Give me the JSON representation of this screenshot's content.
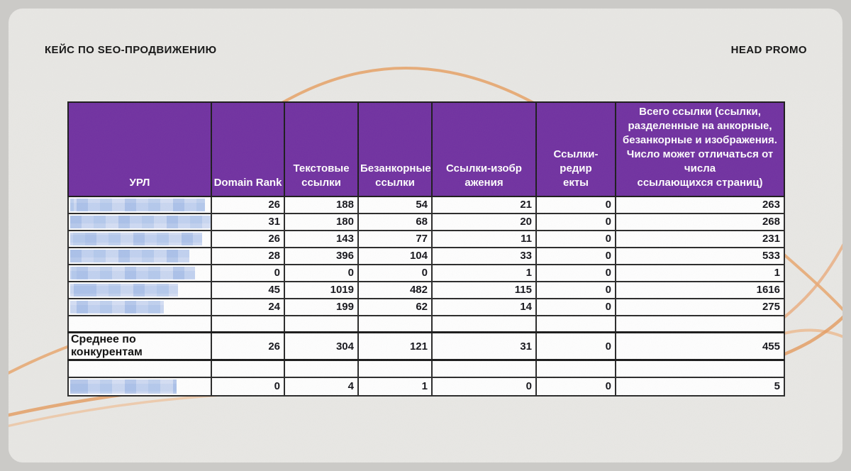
{
  "slide": {
    "title": "КЕЙС ПО SEO-ПРОДВИЖЕНИЮ",
    "brand": "HEAD PROMO"
  },
  "theme": {
    "header_bg": "#7131a1",
    "header_text": "#ffffff",
    "accent_curve": "#e8a266",
    "accent_curve_light": "#f0c097",
    "card_bg": "#e9e8e5",
    "page_bg": "#cbcac7",
    "table_border": "#2a2a2a",
    "redacted_blue": "#b9cdec"
  },
  "table": {
    "columns": [
      {
        "label": "УРЛ"
      },
      {
        "label": "Domain Rank"
      },
      {
        "label": "Текстовые\nссылки"
      },
      {
        "label": "Безанкорные\nссылки"
      },
      {
        "label": "Ссылки-изобр\nажения"
      },
      {
        "label": "Ссылки-редир\nекты"
      },
      {
        "label": "Всего ссылки (ссылки,\nразделенные на анкорные,\nбезанкорные и изображения.\nЧисло может отличаться от числа\nссылающихся страниц)"
      }
    ],
    "rows": [
      {
        "redacted_url": true,
        "blur_w": 190,
        "values": [
          "26",
          "188",
          "54",
          "21",
          "0",
          "263"
        ]
      },
      {
        "redacted_url": true,
        "blur_w": 198,
        "values": [
          "31",
          "180",
          "68",
          "20",
          "0",
          "268"
        ]
      },
      {
        "redacted_url": true,
        "blur_w": 186,
        "values": [
          "26",
          "143",
          "77",
          "11",
          "0",
          "231"
        ]
      },
      {
        "redacted_url": true,
        "blur_w": 168,
        "values": [
          "28",
          "396",
          "104",
          "33",
          "0",
          "533"
        ]
      },
      {
        "redacted_url": true,
        "blur_w": 176,
        "values": [
          "0",
          "0",
          "0",
          "1",
          "0",
          "1"
        ]
      },
      {
        "redacted_url": true,
        "blur_w": 152,
        "values": [
          "45",
          "1019",
          "482",
          "115",
          "0",
          "1616"
        ]
      },
      {
        "redacted_url": true,
        "blur_w": 132,
        "values": [
          "24",
          "199",
          "62",
          "14",
          "0",
          "275"
        ]
      }
    ],
    "average_row": {
      "label": "Среднее по конкурентам",
      "values": [
        "26",
        "304",
        "121",
        "31",
        "0",
        "455"
      ]
    },
    "client_row": {
      "redacted_url": true,
      "blur_w": 150,
      "values": [
        "0",
        "4",
        "1",
        "0",
        "0",
        "5"
      ]
    }
  }
}
